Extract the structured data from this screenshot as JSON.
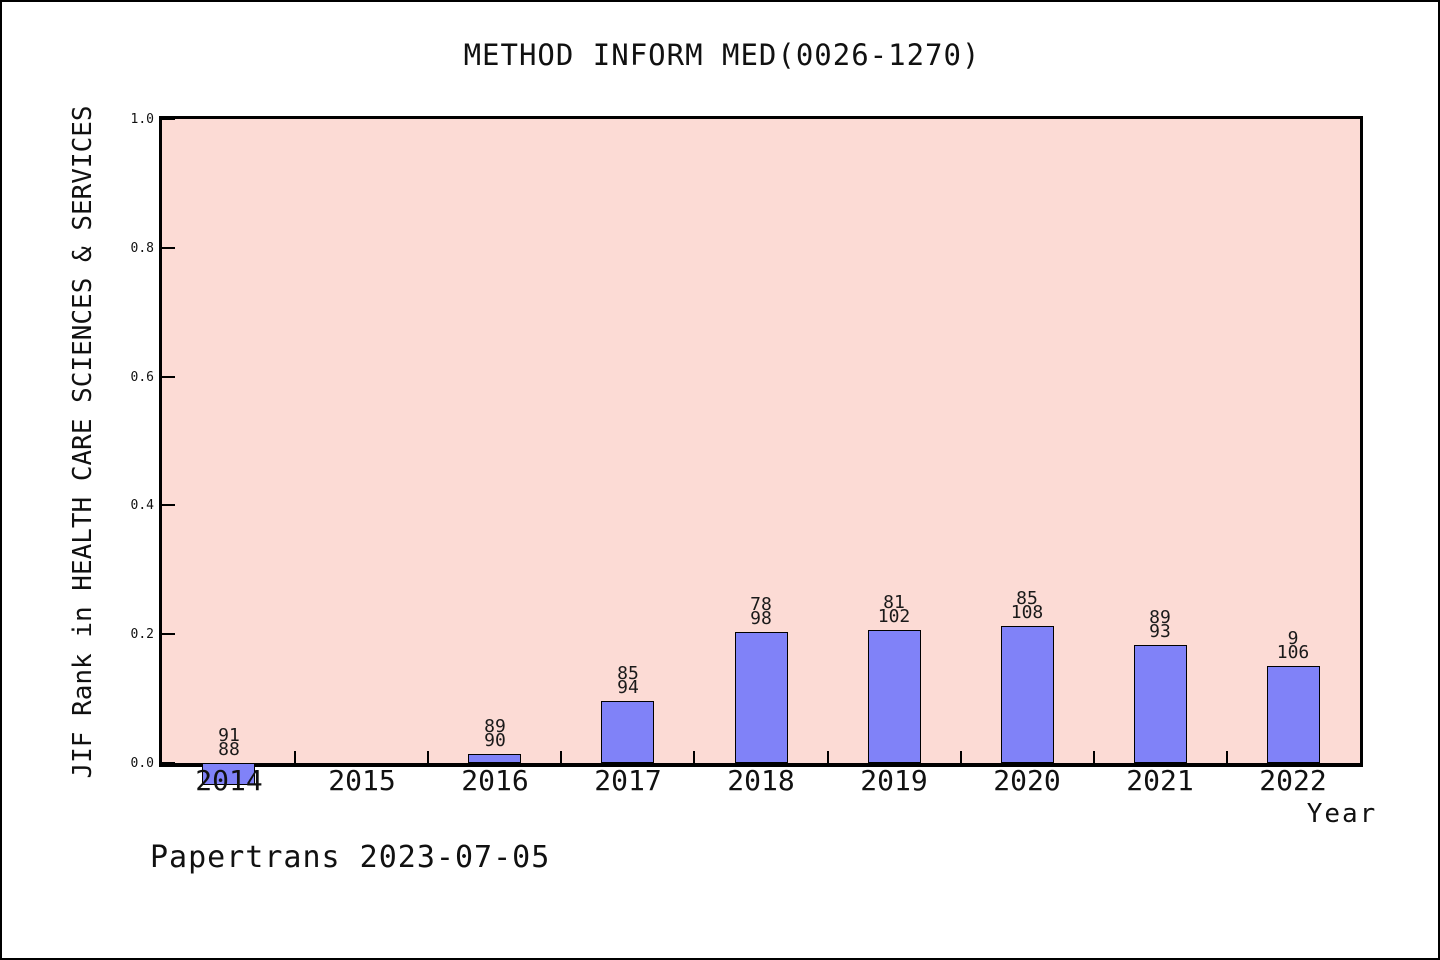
{
  "chart": {
    "title": "METHOD INFORM MED(0026-1270)",
    "ylabel": "JIF Rank in HEALTH CARE SCIENCES & SERVICES",
    "xlabel": "Year",
    "watermark": "Papertrans 2023-07-05",
    "colors": {
      "plot_bg": "#fcdbd5",
      "bar_fill": "#8082f8",
      "bar_edge": "#000000",
      "axis": "#000000"
    }
  },
  "chart_data": {
    "type": "bar",
    "title": "METHOD INFORM MED(0026-1270)",
    "xlabel": "Year",
    "ylabel": "JIF Rank in HEALTH CARE SCIENCES & SERVICES",
    "categories": [
      "2014",
      "2015",
      "2016",
      "2017",
      "2018",
      "2019",
      "2020",
      "2021",
      "2022"
    ],
    "values": [
      -0.034,
      0,
      0.014,
      0.096,
      0.204,
      0.206,
      0.213,
      0.183,
      0.151
    ],
    "bar_labels": [
      [
        "91",
        "88"
      ],
      [],
      [
        "89",
        "90"
      ],
      [
        "85",
        "94"
      ],
      [
        "78",
        "98"
      ],
      [
        "81",
        "102"
      ],
      [
        "85",
        "108"
      ],
      [
        "89",
        "93"
      ],
      [
        "9",
        "106"
      ]
    ],
    "yticks": [
      0.0,
      0.2,
      0.4,
      0.6,
      0.8,
      1.0
    ],
    "ytick_labels": [
      "0.0",
      "0.2",
      "0.4",
      "0.6",
      "0.8",
      "1.0"
    ],
    "ylim": [
      0,
      1
    ],
    "grid": false,
    "legend": "none",
    "annotation": "Papertrans 2023-07-05"
  }
}
